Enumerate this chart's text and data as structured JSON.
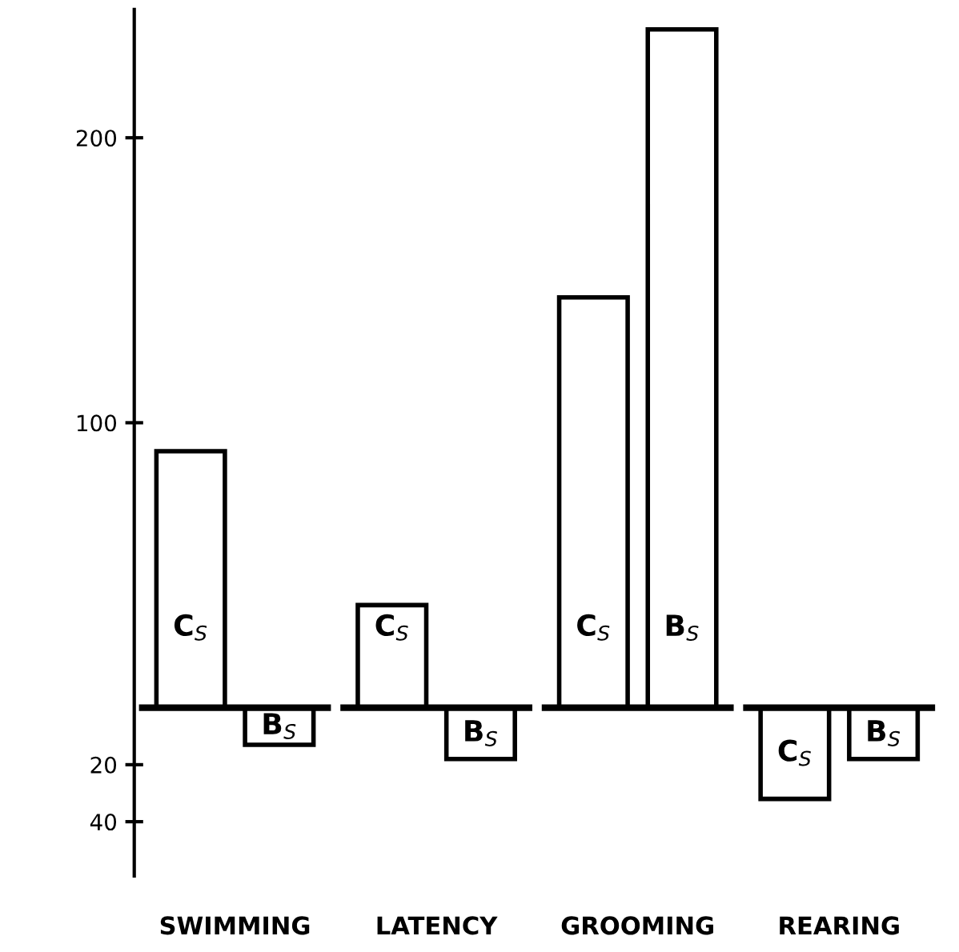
{
  "chart_data": {
    "type": "bar",
    "categories": [
      "SWIMMING",
      "LATENCY",
      "GROOMING",
      "REARING"
    ],
    "series": [
      {
        "name": "C$_{S}$",
        "color": "#ffffff",
        "values": [
          90,
          36,
          144,
          -32
        ]
      },
      {
        "name": "B$_{S}$",
        "color": "#ffffff",
        "values": [
          -13,
          -18,
          238,
          -18
        ]
      }
    ],
    "ylim": [
      -59,
      245
    ],
    "yticks": [
      {
        "value": -40,
        "label": "40"
      },
      {
        "value": -20,
        "label": "20"
      },
      100,
      200
    ],
    "ref_lines": [
      {
        "axis": "y",
        "value": 0
      }
    ],
    "grid": false,
    "legend": false
  }
}
